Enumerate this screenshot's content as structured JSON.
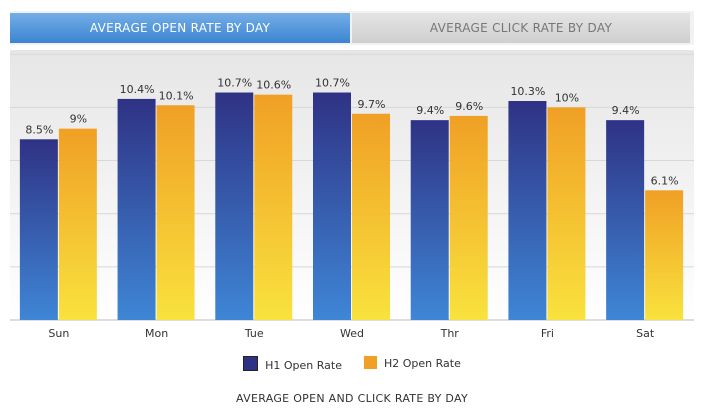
{
  "tabs": [
    {
      "label": "AVERAGE OPEN RATE BY DAY",
      "active": true
    },
    {
      "label": "AVERAGE CLICK RATE BY DAY",
      "active": false
    }
  ],
  "chart_data": {
    "type": "bar",
    "title": "AVERAGE OPEN AND CLICK RATE BY DAY",
    "categories": [
      "Sun",
      "Mon",
      "Tue",
      "Wed",
      "Thr",
      "Fri",
      "Sat"
    ],
    "series": [
      {
        "name": "H1 Open Rate",
        "values": [
          8.5,
          10.4,
          10.7,
          10.7,
          9.4,
          10.3,
          9.4
        ],
        "labels": [
          "8.5%",
          "10.4%",
          "10.7%",
          "10.7%",
          "9.4%",
          "10.3%",
          "9.4%"
        ],
        "color": "#2f3284"
      },
      {
        "name": "H2 Open Rate",
        "values": [
          9,
          10.1,
          10.6,
          9.7,
          9.6,
          10,
          6.1
        ],
        "labels": [
          "9%",
          "10.1%",
          "10.6%",
          "9.7%",
          "9.6%",
          "10%",
          "6.1%"
        ],
        "color": "#f0a025"
      }
    ],
    "ylim": [
      0,
      12.7
    ],
    "grid": true,
    "y_axis_labels_shown": false,
    "legend": "bottom"
  }
}
